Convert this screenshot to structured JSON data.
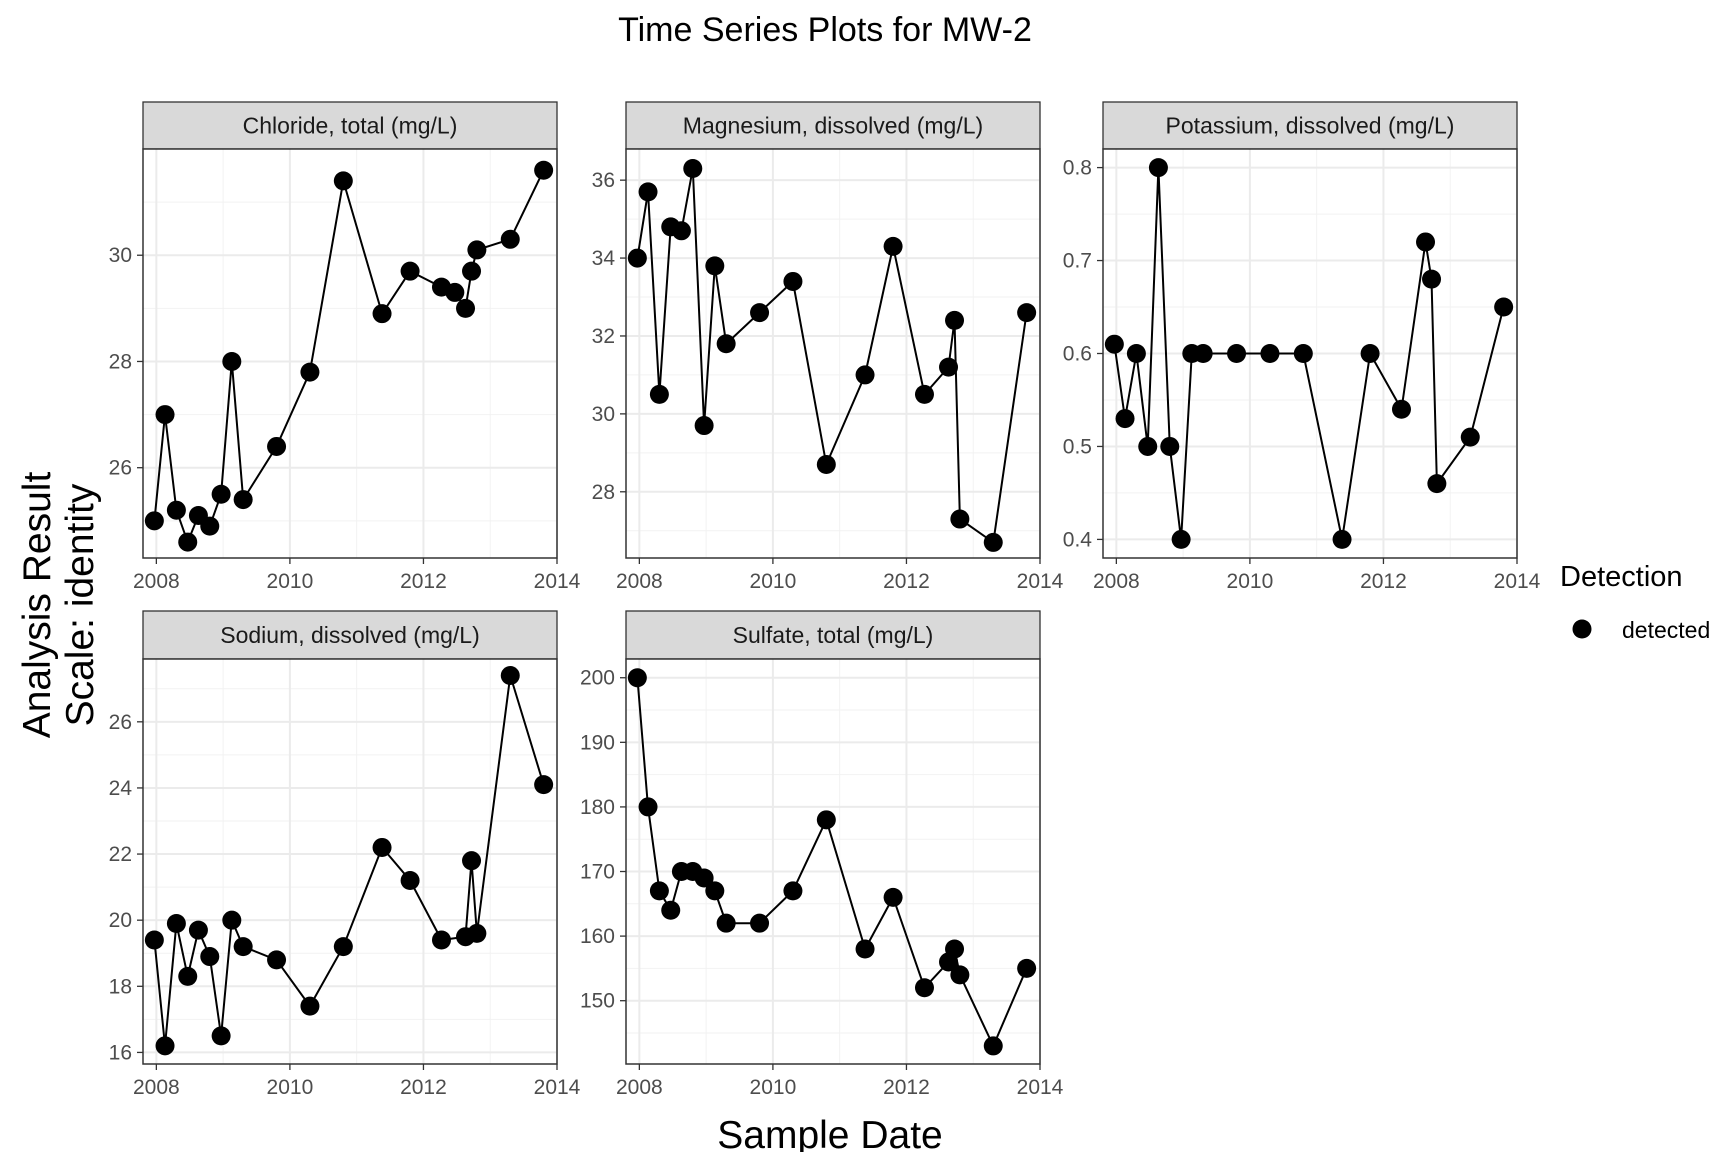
{
  "title": "Time Series Plots for MW-2",
  "xlabel": "Sample Date",
  "ylabel_line1": "Analysis Result",
  "ylabel_line2": "Scale: identity",
  "legend": {
    "title": "Detection",
    "items": [
      "detected"
    ]
  },
  "colors": {
    "point": "#000000",
    "line": "#000000",
    "strip_fill": "#d9d9d9",
    "grid": "#ebebeb",
    "panel_border": "#333333"
  },
  "chart_data": [
    {
      "type": "line",
      "panel": "Chloride, total (mg/L)",
      "x_ticks": [
        "2008",
        "2010",
        "2012",
        "2014"
      ],
      "y_ticks": [
        26,
        28,
        30
      ],
      "xlim": [
        2007.8,
        2014.0
      ],
      "ylim": [
        24.3,
        32.0
      ],
      "series": [
        {
          "marker": "point",
          "x": [
            2007.97,
            2008.13,
            2008.3,
            2008.47,
            2008.63,
            2008.8,
            2008.97,
            2009.13,
            2009.3,
            2009.8,
            2010.3,
            2010.8,
            2011.38,
            2011.8,
            2012.27,
            2012.47,
            2012.63,
            2012.72,
            2012.8,
            2013.3,
            2013.8
          ],
          "y": [
            25.0,
            27.0,
            25.2,
            24.6,
            25.1,
            24.9,
            25.5,
            28.0,
            25.4,
            26.4,
            27.8,
            31.4,
            28.9,
            29.7,
            29.4,
            29.3,
            29.0,
            29.7,
            30.1,
            30.3,
            31.6
          ]
        }
      ]
    },
    {
      "type": "line",
      "panel": "Magnesium, dissolved (mg/L)",
      "x_ticks": [
        "2008",
        "2010",
        "2012",
        "2014"
      ],
      "y_ticks": [
        28,
        30,
        32,
        34,
        36
      ],
      "xlim": [
        2007.8,
        2014.0
      ],
      "ylim": [
        26.3,
        36.8
      ],
      "series": [
        {
          "marker": "point",
          "x": [
            2007.97,
            2008.13,
            2008.3,
            2008.47,
            2008.63,
            2008.8,
            2008.97,
            2009.13,
            2009.3,
            2009.8,
            2010.3,
            2010.8,
            2011.38,
            2011.8,
            2012.27,
            2012.63,
            2012.72,
            2012.8,
            2013.3,
            2013.8
          ],
          "y": [
            34.0,
            35.7,
            30.5,
            34.8,
            34.7,
            36.3,
            29.7,
            33.8,
            31.8,
            32.6,
            33.4,
            28.7,
            31.0,
            34.3,
            30.5,
            31.2,
            32.4,
            27.3,
            26.7,
            32.6
          ]
        }
      ]
    },
    {
      "type": "line",
      "panel": "Potassium, dissolved (mg/L)",
      "x_ticks": [
        "2008",
        "2010",
        "2012",
        "2014"
      ],
      "y_ticks": [
        0.4,
        0.5,
        0.6,
        0.7,
        0.8
      ],
      "xlim": [
        2007.8,
        2014.0
      ],
      "ylim": [
        0.38,
        0.82
      ],
      "series": [
        {
          "marker": "point",
          "x": [
            2007.97,
            2008.13,
            2008.3,
            2008.47,
            2008.63,
            2008.8,
            2008.97,
            2009.13,
            2009.3,
            2009.8,
            2010.3,
            2010.8,
            2011.38,
            2011.8,
            2012.27,
            2012.63,
            2012.72,
            2012.8,
            2013.3,
            2013.8
          ],
          "y": [
            0.61,
            0.53,
            0.6,
            0.5,
            0.8,
            0.5,
            0.4,
            0.6,
            0.6,
            0.6,
            0.6,
            0.6,
            0.4,
            0.6,
            0.54,
            0.72,
            0.68,
            0.46,
            0.51,
            0.65
          ]
        }
      ]
    },
    {
      "type": "line",
      "panel": "Sodium, dissolved (mg/L)",
      "x_ticks": [
        "2008",
        "2010",
        "2012",
        "2014"
      ],
      "y_ticks": [
        16,
        18,
        20,
        22,
        24,
        26
      ],
      "xlim": [
        2007.8,
        2014.0
      ],
      "ylim": [
        15.65,
        27.9
      ],
      "series": [
        {
          "marker": "point",
          "x": [
            2007.97,
            2008.13,
            2008.3,
            2008.47,
            2008.63,
            2008.8,
            2008.97,
            2009.13,
            2009.3,
            2009.8,
            2010.3,
            2010.8,
            2011.38,
            2011.8,
            2012.27,
            2012.63,
            2012.72,
            2012.8,
            2013.3,
            2013.8
          ],
          "y": [
            19.4,
            16.2,
            19.9,
            18.3,
            19.7,
            18.9,
            16.5,
            20.0,
            19.2,
            18.8,
            17.4,
            19.2,
            22.2,
            21.2,
            19.4,
            19.5,
            21.8,
            19.6,
            27.4,
            24.1
          ]
        }
      ]
    },
    {
      "type": "line",
      "panel": "Sulfate, total (mg/L)",
      "x_ticks": [
        "2008",
        "2010",
        "2012",
        "2014"
      ],
      "y_ticks": [
        150,
        160,
        170,
        180,
        190,
        200
      ],
      "xlim": [
        2007.8,
        2014.0
      ],
      "ylim": [
        140.2,
        202.9
      ],
      "series": [
        {
          "marker": "point",
          "x": [
            2007.97,
            2008.13,
            2008.3,
            2008.47,
            2008.63,
            2008.8,
            2008.97,
            2009.13,
            2009.3,
            2009.8,
            2010.3,
            2010.8,
            2011.38,
            2011.8,
            2012.27,
            2012.63,
            2012.72,
            2012.8,
            2013.3,
            2013.8
          ],
          "y": [
            200,
            180,
            167,
            164,
            170,
            170,
            169,
            167,
            162,
            162,
            167,
            178,
            158,
            166,
            152,
            156,
            158,
            154,
            143,
            155
          ]
        }
      ]
    }
  ]
}
